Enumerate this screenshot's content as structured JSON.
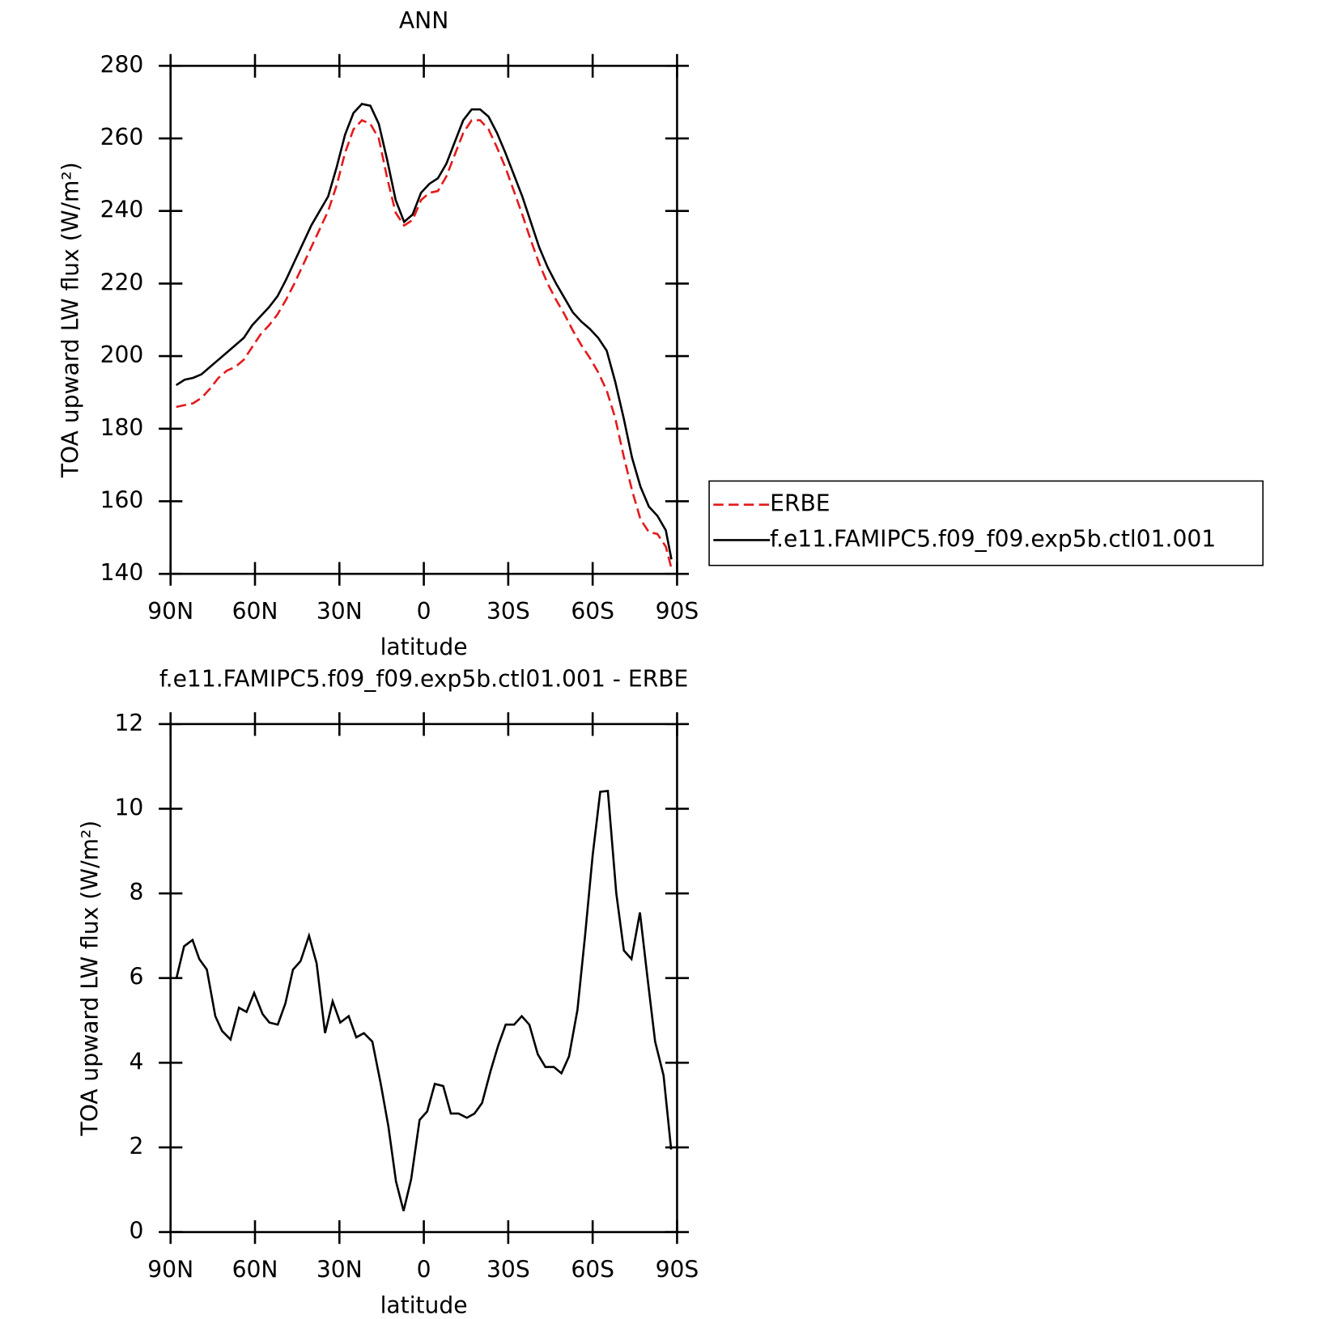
{
  "chart_data": [
    {
      "type": "line",
      "title": "ANN",
      "xlabel": "latitude",
      "ylabel": "TOA upward LW flux (W/m²)",
      "x": [
        88,
        85,
        82,
        79,
        76,
        73,
        70,
        67,
        64,
        61,
        58,
        55,
        52,
        49,
        46,
        43,
        40,
        37,
        34,
        31,
        28,
        25,
        22,
        19,
        16,
        13,
        10,
        7,
        4,
        1,
        -2,
        -5,
        -8,
        -11,
        -14,
        -17,
        -20,
        -23,
        -26,
        -29,
        -32,
        -35,
        -38,
        -41,
        -44,
        -47,
        -50,
        -53,
        -56,
        -59,
        -62,
        -65,
        -68,
        -71,
        -74,
        -77,
        -80,
        -83,
        -86,
        -88
      ],
      "series": [
        {
          "name": "ERBE",
          "color": "#e41a1c",
          "dash": true,
          "values": [
            186,
            186.5,
            187,
            188.5,
            191,
            194,
            196,
            197,
            199,
            202.5,
            206,
            208.5,
            211.5,
            215.5,
            220,
            225,
            230,
            235,
            240,
            247,
            256,
            262.5,
            265,
            264,
            260,
            249,
            239.5,
            236,
            237.5,
            243,
            245,
            245.5,
            249.5,
            255.5,
            261.5,
            265,
            265,
            262.5,
            257.5,
            252,
            245.5,
            239,
            232,
            225.5,
            220,
            215.5,
            211.5,
            207,
            203,
            199.5,
            195.5,
            190.5,
            183,
            172.5,
            163,
            155,
            151.5,
            151,
            147.5,
            141.5
          ]
        },
        {
          "name": "f.e11.FAMIPC5.f09_f09.exp5b.ctl01.001",
          "color": "#000000",
          "dash": false,
          "values": [
            192,
            193.5,
            194,
            195,
            197,
            199,
            201,
            203,
            205,
            208.5,
            211,
            213.5,
            216.5,
            221,
            226,
            231,
            236,
            240,
            244,
            252,
            261,
            267,
            269.5,
            269,
            264,
            254,
            243,
            237,
            239,
            245,
            247.5,
            249,
            253,
            259,
            265,
            268,
            268,
            266,
            261.5,
            256,
            250,
            244,
            237,
            230,
            224.5,
            220,
            216,
            212,
            209.5,
            207.5,
            205,
            201.5,
            193,
            183,
            172,
            164,
            158.5,
            156,
            152,
            144
          ]
        }
      ],
      "xlim": [
        90,
        -90
      ],
      "xticks": [
        {
          "value": 90,
          "label": "90N"
        },
        {
          "value": 60,
          "label": "60N"
        },
        {
          "value": 30,
          "label": "30N"
        },
        0,
        {
          "value": -30,
          "label": "30S"
        },
        {
          "value": -60,
          "label": "60S"
        },
        {
          "value": -90,
          "label": "90S"
        }
      ],
      "ylim": [
        140,
        280
      ],
      "yticks": [
        140,
        160,
        180,
        200,
        220,
        240,
        260,
        280
      ],
      "legend": "right"
    },
    {
      "type": "line",
      "title": "f.e11.FAMIPC5.f09_f09.exp5b.ctl01.001 - ERBE",
      "xlabel": "latitude",
      "ylabel": "TOA upward LW flux (W/m²)",
      "x": [
        87.9,
        85.2,
        82.2,
        79.8,
        77.1,
        74.1,
        71.7,
        68.7,
        65.7,
        63,
        60.3,
        57.3,
        54.9,
        51.9,
        49.2,
        46.5,
        43.8,
        40.8,
        38.1,
        35.1,
        32.4,
        29.7,
        26.7,
        24,
        21.3,
        18.3,
        15.3,
        12.6,
        9.9,
        7.2,
        4.5,
        1.5,
        -1.2,
        -3.9,
        -6.9,
        -9.6,
        -12.3,
        -15.3,
        -18,
        -20.7,
        -23.7,
        -26.4,
        -29.1,
        -32.1,
        -34.8,
        -37.5,
        -40.5,
        -43.2,
        -46.2,
        -48.9,
        -51.6,
        -54.6,
        -57.3,
        -60,
        -62.7,
        -65.4,
        -68.4,
        -71.1,
        -73.8,
        -76.8,
        -79.5,
        -82.2,
        -85.2,
        -87.9
      ],
      "series": [
        {
          "color": "#000000",
          "values": [
            6.0,
            6.75,
            6.9,
            6.45,
            6.2,
            5.1,
            4.75,
            4.55,
            5.3,
            5.2,
            5.65,
            5.15,
            4.95,
            4.9,
            5.4,
            6.2,
            6.4,
            7.0,
            6.35,
            4.7,
            5.45,
            4.95,
            5.1,
            4.6,
            4.7,
            4.5,
            3.5,
            2.5,
            1.2,
            0.5,
            1.25,
            2.65,
            2.85,
            3.5,
            3.45,
            2.8,
            2.8,
            2.7,
            2.8,
            3.05,
            3.8,
            4.4,
            4.9,
            4.9,
            5.1,
            4.9,
            4.2,
            3.9,
            3.9,
            3.75,
            4.15,
            5.25,
            7.0,
            8.9,
            10.4,
            10.42,
            8.0,
            6.65,
            6.45,
            7.55,
            6.0,
            4.5,
            3.7,
            1.95
          ]
        }
      ],
      "xlim": [
        90,
        -90
      ],
      "xticks": [
        {
          "value": 90,
          "label": "90N"
        },
        {
          "value": 60,
          "label": "60N"
        },
        {
          "value": 30,
          "label": "30N"
        },
        0,
        {
          "value": -30,
          "label": "30S"
        },
        {
          "value": -60,
          "label": "60S"
        },
        {
          "value": -90,
          "label": "90S"
        }
      ],
      "ylim": [
        0,
        12
      ],
      "yticks": [
        0,
        2,
        4,
        6,
        8,
        10,
        12
      ]
    }
  ]
}
